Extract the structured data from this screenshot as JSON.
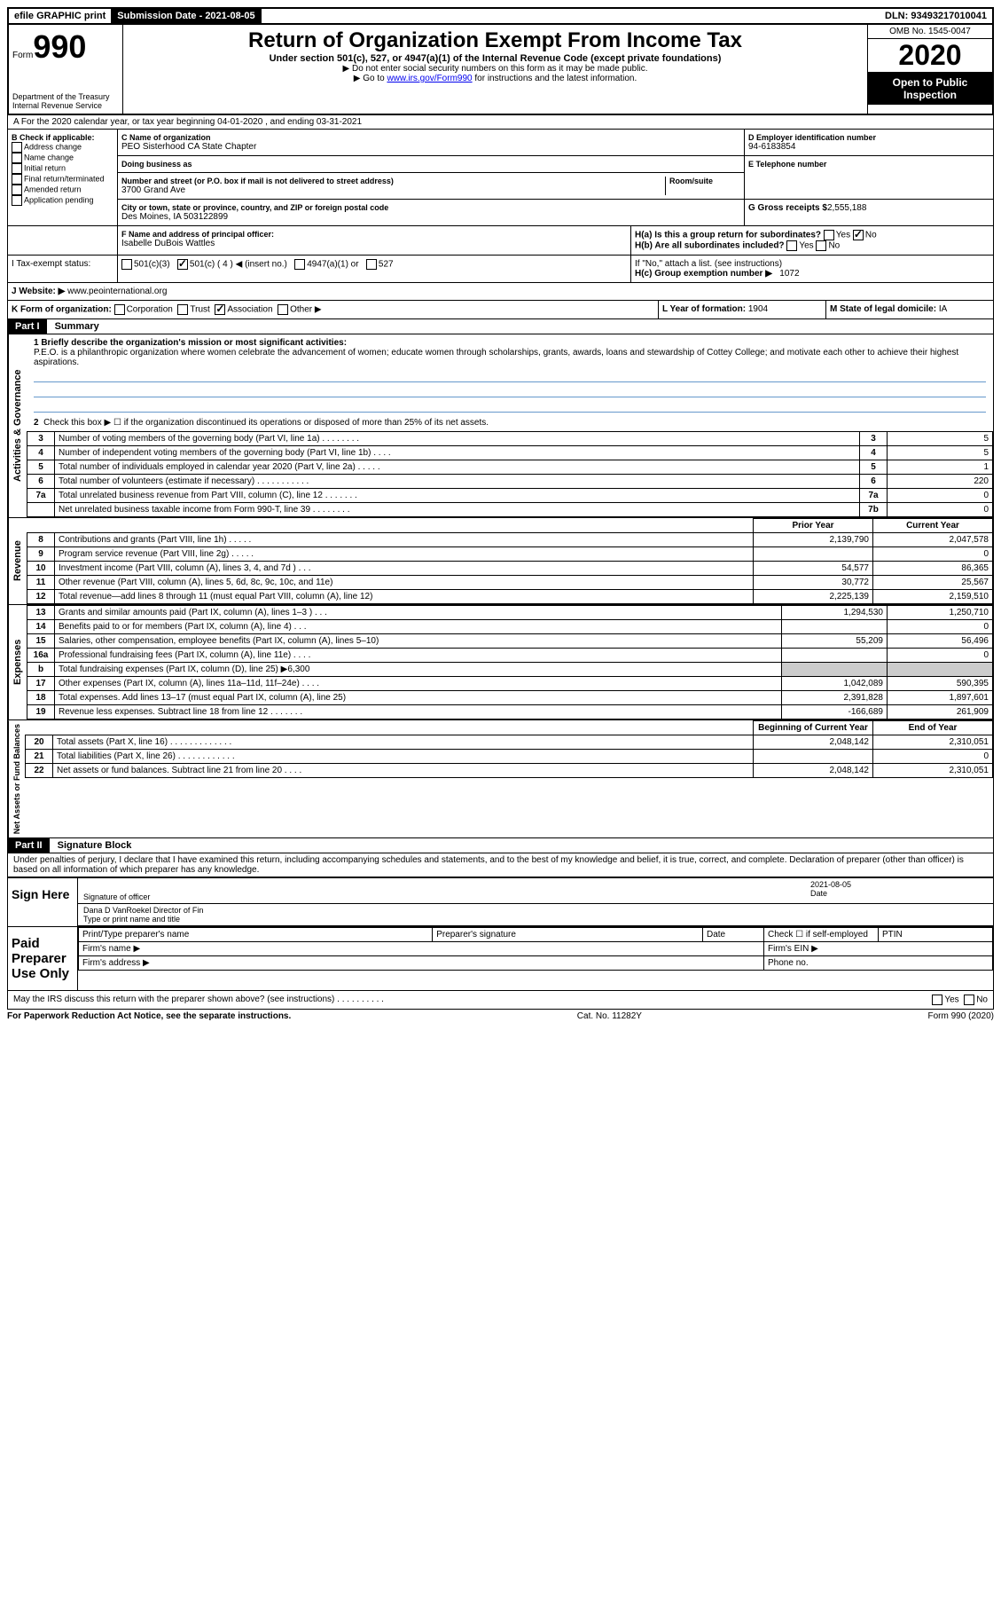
{
  "top_bar": {
    "efile": "efile GRAPHIC print",
    "submission_label": "Submission Date - 2021-08-05",
    "dln": "DLN: 93493217010041"
  },
  "header": {
    "form_word": "Form",
    "form_num": "990",
    "dept": "Department of the Treasury\nInternal Revenue Service",
    "title": "Return of Organization Exempt From Income Tax",
    "subtitle": "Under section 501(c), 527, or 4947(a)(1) of the Internal Revenue Code (except private foundations)",
    "note1": "▶ Do not enter social security numbers on this form as it may be made public.",
    "note2_pre": "▶ Go to ",
    "note2_link": "www.irs.gov/Form990",
    "note2_post": " for instructions and the latest information.",
    "omb": "OMB No. 1545-0047",
    "year": "2020",
    "open": "Open to Public Inspection"
  },
  "row_a": "A For the 2020 calendar year, or tax year beginning 04-01-2020    , and ending 03-31-2021",
  "section_b": {
    "label": "B Check if applicable:",
    "opts": [
      "Address change",
      "Name change",
      "Initial return",
      "Final return/terminated",
      "Amended return",
      "Application pending"
    ]
  },
  "section_c": {
    "name_label": "C Name of organization",
    "name": "PEO Sisterhood CA State Chapter",
    "dba_label": "Doing business as",
    "addr_label": "Number and street (or P.O. box if mail is not delivered to street address)",
    "room_label": "Room/suite",
    "addr": "3700 Grand Ave",
    "city_label": "City or town, state or province, country, and ZIP or foreign postal code",
    "city": "Des Moines, IA  503122899"
  },
  "section_d": {
    "label": "D Employer identification number",
    "value": "94-6183854"
  },
  "section_e": {
    "label": "E Telephone number",
    "value": ""
  },
  "section_g": {
    "label": "G Gross receipts $",
    "value": "2,555,188"
  },
  "section_f": {
    "label": "F  Name and address of principal officer:",
    "name": "Isabelle DuBois Wattles"
  },
  "section_h": {
    "a_label": "H(a)  Is this a group return for subordinates?",
    "a_yes": "Yes",
    "a_no": "No",
    "b_label": "H(b)  Are all subordinates included?",
    "b_note": "If \"No,\" attach a list. (see instructions)",
    "c_label": "H(c)  Group exemption number ▶",
    "c_value": "1072"
  },
  "section_i": {
    "label": "I  Tax-exempt status:",
    "opts": [
      "501(c)(3)",
      "501(c) ( 4 ) ◀ (insert no.)",
      "4947(a)(1) or",
      "527"
    ],
    "checked_idx": 1
  },
  "section_j": {
    "label": "J  Website: ▶",
    "value": "www.peointernational.org"
  },
  "section_k": {
    "label": "K Form of organization:",
    "opts": [
      "Corporation",
      "Trust",
      "Association",
      "Other ▶"
    ],
    "checked_idx": 2
  },
  "section_l": {
    "label": "L Year of formation:",
    "value": "1904"
  },
  "section_m": {
    "label": "M State of legal domicile:",
    "value": "IA"
  },
  "part1": {
    "header": "Part I",
    "title": "Summary",
    "briefly_label": "1  Briefly describe the organization's mission or most significant activities:",
    "mission": "P.E.O. is a philanthropic organization where women celebrate the advancement of women; educate women through scholarships, grants, awards, loans and stewardship of Cottey College; and motivate each other to achieve their highest aspirations.",
    "line2": "Check this box ▶ ☐  if the organization discontinued its operations or disposed of more than 25% of its net assets."
  },
  "activities": {
    "vert": "Activities & Governance",
    "rows": [
      {
        "n": "3",
        "label": "Number of voting members of the governing body (Part VI, line 1a)  .   .   .   .   .   .   .   .",
        "box": "3",
        "val": "5"
      },
      {
        "n": "4",
        "label": "Number of independent voting members of the governing body (Part VI, line 1b)  .   .   .   .",
        "box": "4",
        "val": "5"
      },
      {
        "n": "5",
        "label": "Total number of individuals employed in calendar year 2020 (Part V, line 2a)  .   .   .   .   .",
        "box": "5",
        "val": "1"
      },
      {
        "n": "6",
        "label": "Total number of volunteers (estimate if necessary)   .   .   .   .   .   .   .   .   .   .   .",
        "box": "6",
        "val": "220"
      },
      {
        "n": "7a",
        "label": "Total unrelated business revenue from Part VIII, column (C), line 12  .   .   .   .   .   .   .",
        "box": "7a",
        "val": "0"
      },
      {
        "n": "",
        "label": "Net unrelated business taxable income from Form 990-T, line 39   .   .   .   .   .   .   .   .",
        "box": "7b",
        "val": "0"
      }
    ]
  },
  "revenue": {
    "vert": "Revenue",
    "prior_header": "Prior Year",
    "current_header": "Current Year",
    "rows": [
      {
        "n": "8",
        "label": "Contributions and grants (Part VIII, line 1h)   .   .   .   .   .",
        "prior": "2,139,790",
        "curr": "2,047,578"
      },
      {
        "n": "9",
        "label": "Program service revenue (Part VIII, line 2g)   .   .   .   .   .",
        "prior": "",
        "curr": "0"
      },
      {
        "n": "10",
        "label": "Investment income (Part VIII, column (A), lines 3, 4, and 7d )   .   .   .",
        "prior": "54,577",
        "curr": "86,365"
      },
      {
        "n": "11",
        "label": "Other revenue (Part VIII, column (A), lines 5, 6d, 8c, 9c, 10c, and 11e)",
        "prior": "30,772",
        "curr": "25,567"
      },
      {
        "n": "12",
        "label": "Total revenue—add lines 8 through 11 (must equal Part VIII, column (A), line 12)",
        "prior": "2,225,139",
        "curr": "2,159,510"
      }
    ]
  },
  "expenses": {
    "vert": "Expenses",
    "rows": [
      {
        "n": "13",
        "label": "Grants and similar amounts paid (Part IX, column (A), lines 1–3 )  .   .   .",
        "prior": "1,294,530",
        "curr": "1,250,710"
      },
      {
        "n": "14",
        "label": "Benefits paid to or for members (Part IX, column (A), line 4)  .   .   .",
        "prior": "",
        "curr": "0"
      },
      {
        "n": "15",
        "label": "Salaries, other compensation, employee benefits (Part IX, column (A), lines 5–10)",
        "prior": "55,209",
        "curr": "56,496"
      },
      {
        "n": "16a",
        "label": "Professional fundraising fees (Part IX, column (A), line 11e)  .   .   .   .",
        "prior": "",
        "curr": "0"
      },
      {
        "n": "b",
        "label": "Total fundraising expenses (Part IX, column (D), line 25) ▶6,300",
        "prior": "grey",
        "curr": "grey"
      },
      {
        "n": "17",
        "label": "Other expenses (Part IX, column (A), lines 11a–11d, 11f–24e)  .   .   .   .",
        "prior": "1,042,089",
        "curr": "590,395"
      },
      {
        "n": "18",
        "label": "Total expenses. Add lines 13–17 (must equal Part IX, column (A), line 25)",
        "prior": "2,391,828",
        "curr": "1,897,601"
      },
      {
        "n": "19",
        "label": "Revenue less expenses. Subtract line 18 from line 12 .   .   .   .   .   .   .",
        "prior": "-166,689",
        "curr": "261,909"
      }
    ]
  },
  "netassets": {
    "vert": "Net Assets or Fund Balances",
    "begin_header": "Beginning of Current Year",
    "end_header": "End of Year",
    "rows": [
      {
        "n": "20",
        "label": "Total assets (Part X, line 16)  .   .   .   .   .   .   .   .   .   .   .   .   .",
        "prior": "2,048,142",
        "curr": "2,310,051"
      },
      {
        "n": "21",
        "label": "Total liabilities (Part X, line 26)  .   .   .   .   .   .   .   .   .   .   .   .",
        "prior": "",
        "curr": "0"
      },
      {
        "n": "22",
        "label": "Net assets or fund balances. Subtract line 21 from line 20  .   .   .   .",
        "prior": "2,048,142",
        "curr": "2,310,051"
      }
    ]
  },
  "part2": {
    "header": "Part II",
    "title": "Signature Block",
    "declaration": "Under penalties of perjury, I declare that I have examined this return, including accompanying schedules and statements, and to the best of my knowledge and belief, it is true, correct, and complete. Declaration of preparer (other than officer) is based on all information of which preparer has any knowledge."
  },
  "sign": {
    "left": "Sign Here",
    "sig_label": "Signature of officer",
    "date_label": "Date",
    "date": "2021-08-05",
    "name": "Dana D VanRoekel  Director of Fin",
    "name_label": "Type or print name and title"
  },
  "preparer": {
    "left": "Paid Preparer Use Only",
    "print_label": "Print/Type preparer's name",
    "sig_label": "Preparer's signature",
    "date_label": "Date",
    "check_label": "Check ☐ if self-employed",
    "ptin_label": "PTIN",
    "firm_name": "Firm's name    ▶",
    "firm_ein": "Firm's EIN ▶",
    "firm_addr": "Firm's address ▶",
    "phone": "Phone no."
  },
  "discuss": {
    "label": "May the IRS discuss this return with the preparer shown above? (see instructions)   .   .   .   .   .   .   .   .   .   .",
    "yes": "Yes",
    "no": "No"
  },
  "footer": {
    "left": "For Paperwork Reduction Act Notice, see the separate instructions.",
    "mid": "Cat. No. 11282Y",
    "right": "Form 990 (2020)"
  }
}
